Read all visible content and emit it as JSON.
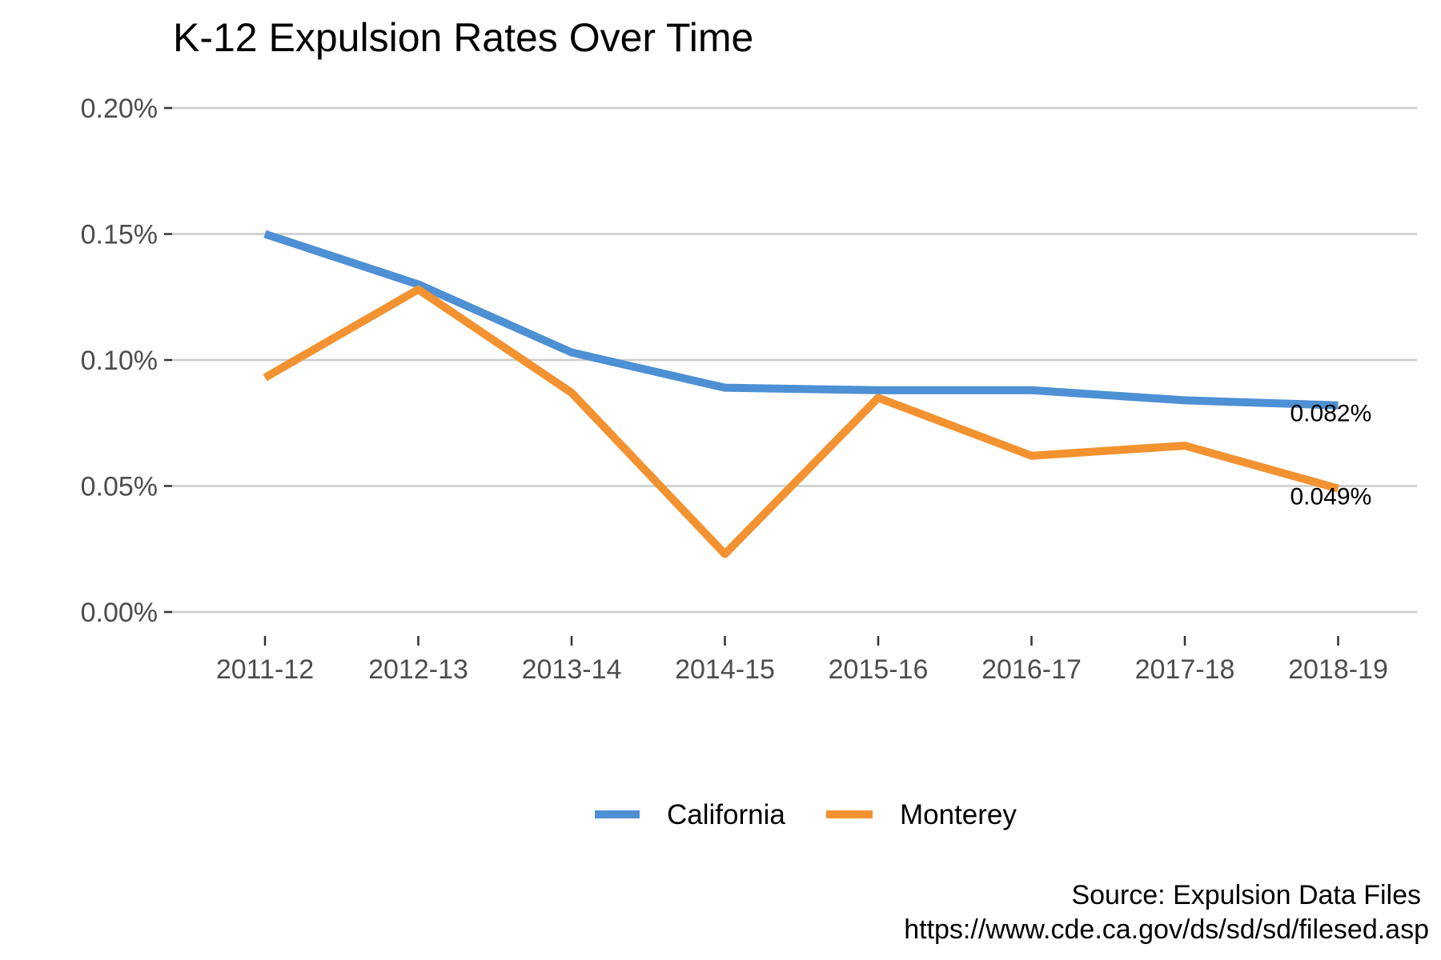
{
  "chart_data": {
    "type": "line",
    "title": "K-12 Expulsion Rates Over Time",
    "xlabel": "",
    "ylabel": "",
    "categories": [
      "2011-12",
      "2012-13",
      "2013-14",
      "2014-15",
      "2015-16",
      "2016-17",
      "2017-18",
      "2018-19"
    ],
    "ylim": [
      0,
      0.2
    ],
    "yticks": [
      0,
      0.05,
      0.1,
      0.15,
      0.2
    ],
    "ytick_labels": [
      "0.00%",
      "0.05%",
      "0.10%",
      "0.15%",
      "0.20%"
    ],
    "grid": "horizontal major gridlines",
    "legend_position": "bottom",
    "series": [
      {
        "name": "California",
        "color": "#4d90d4",
        "values": [
          0.15,
          0.13,
          0.103,
          0.089,
          0.088,
          0.088,
          0.084,
          0.082
        ],
        "end_label": "0.082%"
      },
      {
        "name": "Monterey",
        "color": "#f39230",
        "values": [
          0.093,
          0.128,
          0.087,
          0.023,
          0.085,
          0.062,
          0.066,
          0.049
        ],
        "end_label": "0.049%"
      }
    ],
    "caption": {
      "line1": "Source: Expulsion Data Files",
      "line2": "https://www.cde.ca.gov/ds/sd/sd/filesed.asp"
    }
  }
}
